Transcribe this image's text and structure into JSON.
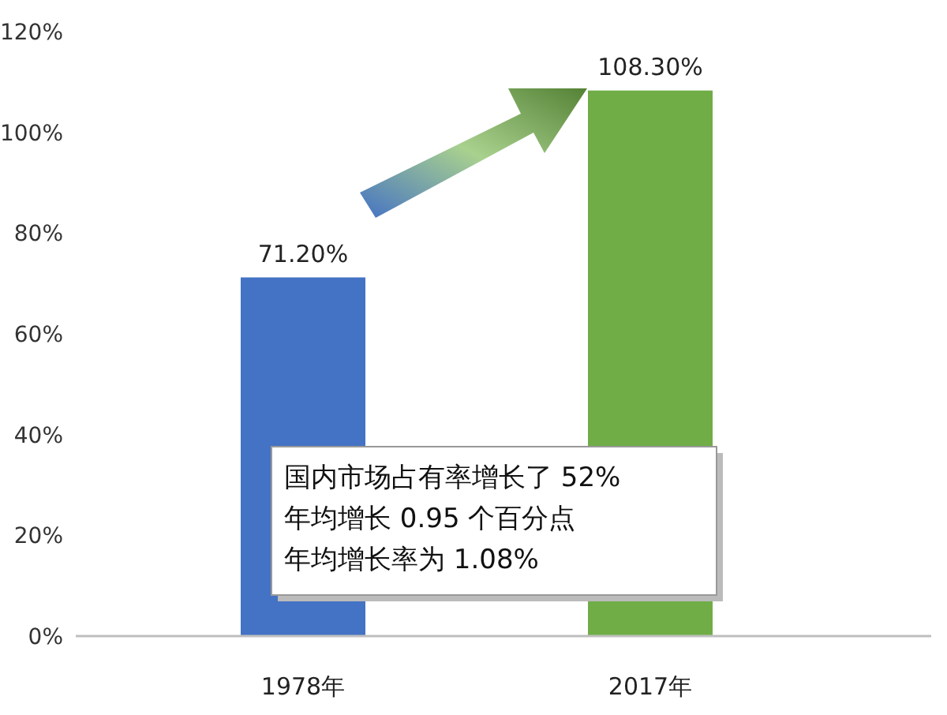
{
  "chart_data": {
    "type": "bar",
    "categories": [
      "1978年",
      "2017年"
    ],
    "values": [
      71.2,
      108.3
    ],
    "colors": [
      "#4472c4",
      "#70ad47"
    ],
    "value_labels": [
      "71.20%",
      "108.30%"
    ],
    "ylim": [
      0,
      120
    ],
    "yticks": [
      {
        "value": 0,
        "label": "0%"
      },
      {
        "value": 20,
        "label": "20%"
      },
      {
        "value": 40,
        "label": "40%"
      },
      {
        "value": 60,
        "label": "60%"
      },
      {
        "value": 80,
        "label": "80%"
      },
      {
        "value": 100,
        "label": "100%"
      },
      {
        "value": 120,
        "label": "120%"
      }
    ],
    "annotations": [
      "国内市场占有率增长了 52%",
      "年均增长 0.95 个百分点",
      "年均增长率为 1.08%"
    ]
  }
}
